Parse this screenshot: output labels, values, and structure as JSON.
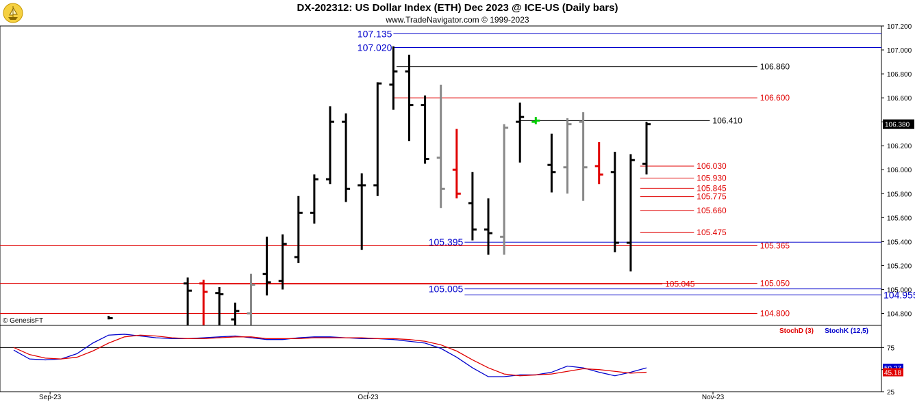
{
  "header": {
    "title": "DX-202312:  US Dollar Index (ETH) Dec 2023 @ ICE-US  (Daily bars)",
    "subtitle": "www.TradeNavigator.com © 1999-2023",
    "watermark": "© GenesisFT"
  },
  "colors": {
    "up": "#000000",
    "down_gray": "#888888",
    "red": "#e00000",
    "blue": "#0000cc",
    "green": "#00cc00"
  },
  "chart_data": [
    {
      "type": "ohlc",
      "title": "DX-202312:  US Dollar Index (ETH) Dec 2023 @ ICE-US  (Daily bars)",
      "ylim": [
        104.7,
        107.2
      ],
      "y_ticks": [
        "107.200",
        "107.000",
        "106.800",
        "106.600",
        "106.400",
        "106.200",
        "106.000",
        "105.800",
        "105.600",
        "105.400",
        "105.200",
        "105.000",
        "104.800"
      ],
      "x_labels": [
        {
          "label": "Sep-23",
          "index": 2.3
        },
        {
          "label": "Oct-23",
          "index": 22.4
        },
        {
          "label": "Nov-23",
          "index": 44.2
        }
      ],
      "last_price": "106.380",
      "bars": [
        {
          "i": 6,
          "o": null,
          "h": 104.78,
          "l": 104.75,
          "c": 104.76,
          "color": "up"
        },
        {
          "i": 11,
          "o": 105.05,
          "h": 105.1,
          "l": 104.7,
          "c": 104.99,
          "color": "up"
        },
        {
          "i": 12,
          "o": 105.05,
          "h": 105.08,
          "l": 104.7,
          "c": 104.98,
          "color": "red"
        },
        {
          "i": 13,
          "o": 104.97,
          "h": 105.02,
          "l": 104.7,
          "c": 104.96,
          "color": "up"
        },
        {
          "i": 14,
          "o": 104.75,
          "h": 104.89,
          "l": 104.7,
          "c": 104.82,
          "color": "up"
        },
        {
          "i": 15,
          "o": 104.8,
          "h": 105.13,
          "l": 104.7,
          "c": 105.04,
          "color": "down_gray"
        },
        {
          "i": 16,
          "o": 105.13,
          "h": 105.44,
          "l": 104.95,
          "c": 105.06,
          "color": "up"
        },
        {
          "i": 17,
          "o": 105.07,
          "h": 105.46,
          "l": 105.0,
          "c": 105.38,
          "color": "up"
        },
        {
          "i": 18,
          "o": 105.27,
          "h": 105.78,
          "l": 105.22,
          "c": 105.64,
          "color": "up"
        },
        {
          "i": 19,
          "o": 105.64,
          "h": 105.96,
          "l": 105.55,
          "c": 105.92,
          "color": "up"
        },
        {
          "i": 20,
          "o": 105.92,
          "h": 106.53,
          "l": 105.88,
          "c": 106.4,
          "color": "up"
        },
        {
          "i": 21,
          "o": 106.4,
          "h": 106.47,
          "l": 105.73,
          "c": 105.84,
          "color": "up"
        },
        {
          "i": 22,
          "o": 105.87,
          "h": 105.97,
          "l": 105.33,
          "c": 105.87,
          "color": "up"
        },
        {
          "i": 23,
          "o": 105.87,
          "h": 106.73,
          "l": 105.78,
          "c": 106.72,
          "color": "up"
        },
        {
          "i": 24,
          "o": 106.71,
          "h": 107.03,
          "l": 106.5,
          "c": 106.82,
          "color": "up"
        },
        {
          "i": 25,
          "o": 106.82,
          "h": 106.96,
          "l": 106.24,
          "c": 106.54,
          "color": "up"
        },
        {
          "i": 26,
          "o": 106.54,
          "h": 106.62,
          "l": 106.05,
          "c": 106.09,
          "color": "up"
        },
        {
          "i": 27,
          "o": 106.1,
          "h": 106.71,
          "l": 105.68,
          "c": 105.84,
          "color": "down_gray"
        },
        {
          "i": 28,
          "o": 106.0,
          "h": 106.34,
          "l": 105.76,
          "c": 105.8,
          "color": "red"
        },
        {
          "i": 29,
          "o": 105.72,
          "h": 105.98,
          "l": 105.41,
          "c": 105.5,
          "color": "up"
        },
        {
          "i": 30,
          "o": 105.5,
          "h": 105.76,
          "l": 105.29,
          "c": 105.47,
          "color": "up"
        },
        {
          "i": 31,
          "o": 105.44,
          "h": 106.38,
          "l": 105.29,
          "c": 106.35,
          "color": "down_gray"
        },
        {
          "i": 32,
          "o": 106.4,
          "h": 106.56,
          "l": 106.06,
          "c": 106.44,
          "color": "up"
        },
        {
          "i": 33,
          "o": 106.4,
          "h": 106.44,
          "l": 106.38,
          "c": 106.41,
          "color": "green"
        },
        {
          "i": 34,
          "o": 106.04,
          "h": 106.3,
          "l": 105.81,
          "c": 105.98,
          "color": "up"
        },
        {
          "i": 35,
          "o": 106.02,
          "h": 106.43,
          "l": 105.8,
          "c": 106.38,
          "color": "down_gray"
        },
        {
          "i": 36,
          "o": 106.4,
          "h": 106.48,
          "l": 105.74,
          "c": 106.02,
          "color": "down_gray"
        },
        {
          "i": 37,
          "o": 106.03,
          "h": 106.23,
          "l": 105.88,
          "c": 105.96,
          "color": "red"
        },
        {
          "i": 38,
          "o": 105.98,
          "h": 106.15,
          "l": 105.31,
          "c": 105.39,
          "color": "up"
        },
        {
          "i": 39,
          "o": 105.39,
          "h": 106.13,
          "l": 105.15,
          "c": 106.08,
          "color": "up"
        },
        {
          "i": 40,
          "o": 106.05,
          "h": 106.4,
          "l": 105.96,
          "c": 106.38,
          "color": "up"
        }
      ],
      "levels": [
        {
          "value": 107.135,
          "label": "107.135",
          "color": "blue",
          "x0": 24.0,
          "x1": 55.5,
          "label_side": "left"
        },
        {
          "value": 107.02,
          "label": "107.020",
          "color": "blue",
          "x0": 24.0,
          "x1": 55.5,
          "label_side": "left"
        },
        {
          "value": 106.86,
          "label": "106.860",
          "color": "up",
          "x0": 24.2,
          "x1": 47.0,
          "label_side": "right"
        },
        {
          "value": 106.6,
          "label": "106.600",
          "color": "red",
          "x0": 24.0,
          "x1": 47.0,
          "label_side": "right"
        },
        {
          "value": 106.41,
          "label": "106.410",
          "color": "up",
          "x0": 32.0,
          "x1": 44.0,
          "label_side": "right"
        },
        {
          "value": 106.03,
          "label": "106.030",
          "color": "red",
          "x0": 39.6,
          "x1": 43.0,
          "label_side": "right"
        },
        {
          "value": 105.93,
          "label": "105.930",
          "color": "red",
          "x0": 39.6,
          "x1": 43.0,
          "label_side": "right"
        },
        {
          "value": 105.845,
          "label": "105.845",
          "color": "red",
          "x0": 39.6,
          "x1": 43.0,
          "label_side": "right"
        },
        {
          "value": 105.775,
          "label": "105.775",
          "color": "red",
          "x0": 39.6,
          "x1": 43.0,
          "label_side": "right"
        },
        {
          "value": 105.66,
          "label": "105.660",
          "color": "red",
          "x0": 39.6,
          "x1": 43.0,
          "label_side": "right"
        },
        {
          "value": 105.475,
          "label": "105.475",
          "color": "red",
          "x0": 39.6,
          "x1": 43.0,
          "label_side": "right"
        },
        {
          "value": 105.395,
          "label": "105.395",
          "color": "blue",
          "x0": 28.5,
          "x1": 55.5,
          "label_side": "left"
        },
        {
          "value": 105.365,
          "label": "105.365",
          "color": "red",
          "x0": 0,
          "x1": 47.0,
          "label_side": "right"
        },
        {
          "value": 105.05,
          "label": "105.050",
          "color": "red",
          "x0": 0,
          "x1": 47.0,
          "label_side": "right"
        },
        {
          "value": 105.045,
          "label": "105.045",
          "color": "red",
          "x0": 12.0,
          "x1": 41.0,
          "label_side": "right"
        },
        {
          "value": 105.005,
          "label": "105.005",
          "color": "blue",
          "x0": 28.5,
          "x1": 55.5,
          "label_side": "left"
        },
        {
          "value": 104.955,
          "label": "104.955",
          "color": "blue",
          "x0": 28.5,
          "x1": 55.5,
          "label_side": "right"
        },
        {
          "value": 104.8,
          "label": "104.800",
          "color": "red",
          "x0": 0,
          "x1": 47.0,
          "label_side": "right"
        }
      ]
    },
    {
      "type": "line",
      "title": "",
      "ylim": [
        25,
        100
      ],
      "y_ticks": [
        "75",
        "50",
        "25"
      ],
      "reference_line": 75,
      "legend": [
        "StochD (3)",
        "StochK (12,5)"
      ],
      "series": [
        {
          "name": "StochK (12,5)",
          "color": "blue",
          "last": "50.27",
          "x": [
            0,
            1,
            2,
            3,
            4,
            5,
            6,
            7,
            8,
            9,
            10,
            11,
            12,
            13,
            14,
            15,
            16,
            17,
            18,
            19,
            20,
            21,
            22,
            23,
            24,
            25,
            26,
            27,
            28,
            29,
            30,
            31,
            32,
            33,
            34,
            35,
            36,
            37,
            38,
            39,
            40
          ],
          "values": [
            72,
            62,
            61,
            62,
            68,
            80,
            89,
            90,
            88,
            86,
            85,
            85,
            86,
            87,
            88,
            86,
            84,
            84,
            86,
            87,
            87,
            86,
            85,
            85,
            84,
            82,
            80,
            74,
            64,
            52,
            42,
            42,
            44,
            44,
            47,
            54,
            52,
            47,
            43,
            47,
            52
          ]
        },
        {
          "name": "StochD (3)",
          "color": "red",
          "last": "45.18",
          "x": [
            0,
            1,
            2,
            3,
            4,
            5,
            6,
            7,
            8,
            9,
            10,
            11,
            12,
            13,
            14,
            15,
            16,
            17,
            18,
            19,
            20,
            21,
            22,
            23,
            24,
            25,
            26,
            27,
            28,
            29,
            30,
            31,
            32,
            33,
            34,
            35,
            36,
            37,
            38,
            39,
            40
          ],
          "values": [
            75,
            67,
            63,
            62,
            64,
            71,
            80,
            87,
            89,
            88,
            86,
            85,
            85,
            86,
            87,
            87,
            85,
            85,
            85,
            86,
            86,
            86,
            86,
            85,
            85,
            84,
            82,
            78,
            71,
            61,
            52,
            45,
            43,
            44,
            45,
            48,
            51,
            50,
            48,
            46,
            47
          ]
        }
      ]
    }
  ]
}
